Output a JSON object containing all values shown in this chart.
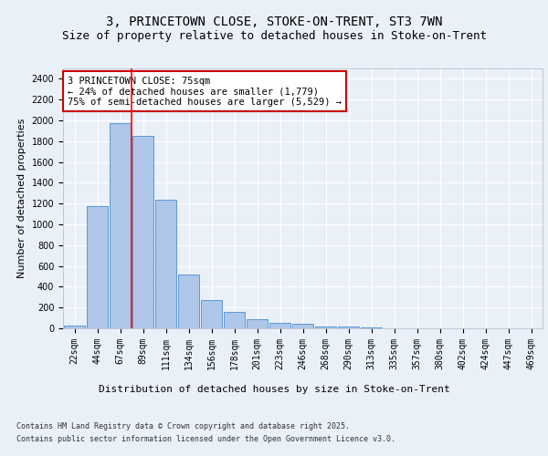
{
  "title1": "3, PRINCETOWN CLOSE, STOKE-ON-TRENT, ST3 7WN",
  "title2": "Size of property relative to detached houses in Stoke-on-Trent",
  "xlabel": "Distribution of detached houses by size in Stoke-on-Trent",
  "ylabel": "Number of detached properties",
  "categories": [
    "22sqm",
    "44sqm",
    "67sqm",
    "89sqm",
    "111sqm",
    "134sqm",
    "156sqm",
    "178sqm",
    "201sqm",
    "223sqm",
    "246sqm",
    "268sqm",
    "290sqm",
    "313sqm",
    "335sqm",
    "357sqm",
    "380sqm",
    "402sqm",
    "424sqm",
    "447sqm",
    "469sqm"
  ],
  "values": [
    30,
    1175,
    1975,
    1850,
    1240,
    515,
    270,
    155,
    90,
    50,
    40,
    20,
    15,
    8,
    3,
    2,
    2,
    2,
    2,
    2,
    2
  ],
  "bar_color": "#aec6e8",
  "bar_edge_color": "#5b9bd5",
  "red_line_x": 2.5,
  "annotation_text": "3 PRINCETOWN CLOSE: 75sqm\n← 24% of detached houses are smaller (1,779)\n75% of semi-detached houses are larger (5,529) →",
  "annotation_box_color": "#ffffff",
  "annotation_box_edge": "#cc0000",
  "ylim": [
    0,
    2500
  ],
  "yticks": [
    0,
    200,
    400,
    600,
    800,
    1000,
    1200,
    1400,
    1600,
    1800,
    2000,
    2200,
    2400
  ],
  "footer1": "Contains HM Land Registry data © Crown copyright and database right 2025.",
  "footer2": "Contains public sector information licensed under the Open Government Licence v3.0.",
  "bg_color": "#eaf0f8",
  "plot_bg_color": "#eaf0f8",
  "grid_color": "#ffffff",
  "title_fontsize": 10,
  "subtitle_fontsize": 9,
  "axis_fontsize": 8,
  "tick_fontsize": 7
}
